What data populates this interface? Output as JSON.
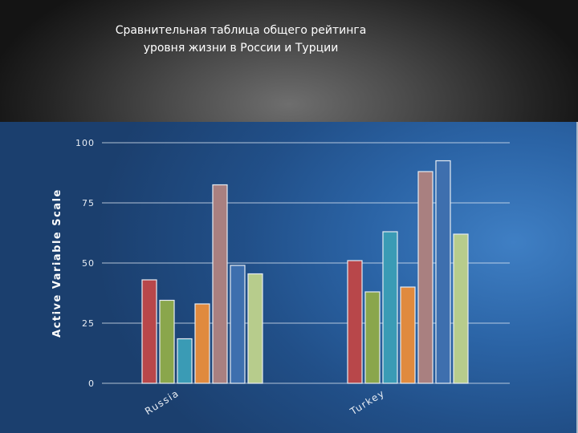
{
  "slide": {
    "title_line1": "Сравнительная таблица общего рейтинга",
    "title_line2": "уровня жизни в России и Турции"
  },
  "chart_data": {
    "type": "bar",
    "ylabel": "Active Variable Scale",
    "ylim": [
      0,
      100
    ],
    "yticks": [
      0,
      25,
      50,
      75,
      100
    ],
    "grid": true,
    "categories": [
      "Russia",
      "Turkey"
    ],
    "series": [
      {
        "color": "#b8474a",
        "values": [
          43,
          51
        ]
      },
      {
        "color": "#8aa64c",
        "values": [
          34.5,
          38
        ]
      },
      {
        "color": "#3a9bb5",
        "values": [
          18.5,
          63
        ]
      },
      {
        "color": "#e08a3e",
        "values": [
          33,
          40
        ]
      },
      {
        "color": "#a98080",
        "values": [
          82.5,
          88
        ]
      },
      {
        "color": "#3e6fae",
        "values": [
          49,
          92.5
        ]
      },
      {
        "color": "#b7cc8c",
        "values": [
          45.5,
          62
        ]
      }
    ]
  }
}
